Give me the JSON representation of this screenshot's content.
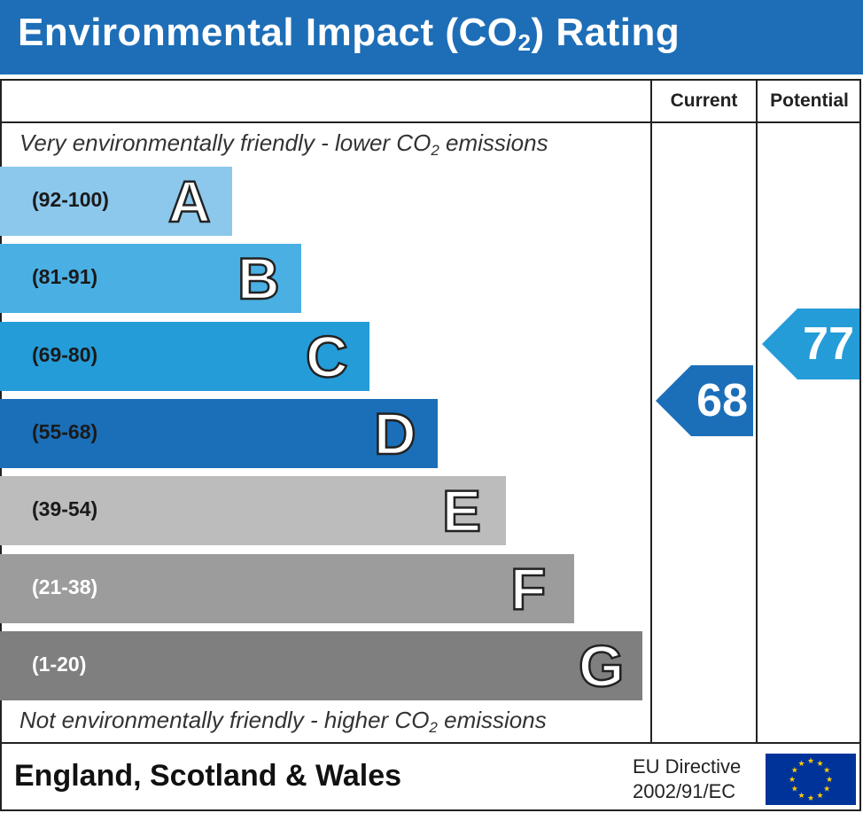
{
  "header": {
    "title_main": "Environmental Impact (CO",
    "title_sub": "2",
    "title_end": ") Rating"
  },
  "columns": {
    "current": "Current",
    "potential": "Potential"
  },
  "captions": {
    "top_pre": "Very environmentally friendly - lower CO",
    "top_sub": "2",
    "top_post": " emissions",
    "bottom_pre": "Not environmentally friendly - higher CO",
    "bottom_sub": "2",
    "bottom_post": " emissions"
  },
  "chart_data": {
    "type": "bar",
    "title": "Environmental Impact (CO2) Rating",
    "bands": [
      {
        "letter": "A",
        "range": "(92-100)",
        "color": "#8cc8ec",
        "text_color": "#1a1a1a"
      },
      {
        "letter": "B",
        "range": "(81-91)",
        "color": "#4ab0e3",
        "text_color": "#1a1a1a"
      },
      {
        "letter": "C",
        "range": "(69-80)",
        "color": "#249cd8",
        "text_color": "#1a1a1a"
      },
      {
        "letter": "D",
        "range": "(55-68)",
        "color": "#1b6fb8",
        "text_color": "#1a1a1a"
      },
      {
        "letter": "E",
        "range": "(39-54)",
        "color": "#bcbcbc",
        "text_color": "#1a1a1a"
      },
      {
        "letter": "F",
        "range": "(21-38)",
        "color": "#9c9c9c",
        "text_color": "#ffffff"
      },
      {
        "letter": "G",
        "range": "(1-20)",
        "color": "#7f7f7f",
        "text_color": "#ffffff"
      }
    ],
    "current": {
      "value": "68",
      "band": "D",
      "color": "#1b6fb8"
    },
    "potential": {
      "value": "77",
      "band": "C",
      "color": "#249cd8"
    }
  },
  "footer": {
    "region": "England, Scotland & Wales",
    "directive_line1": "EU Directive",
    "directive_line2": "2002/91/EC"
  }
}
